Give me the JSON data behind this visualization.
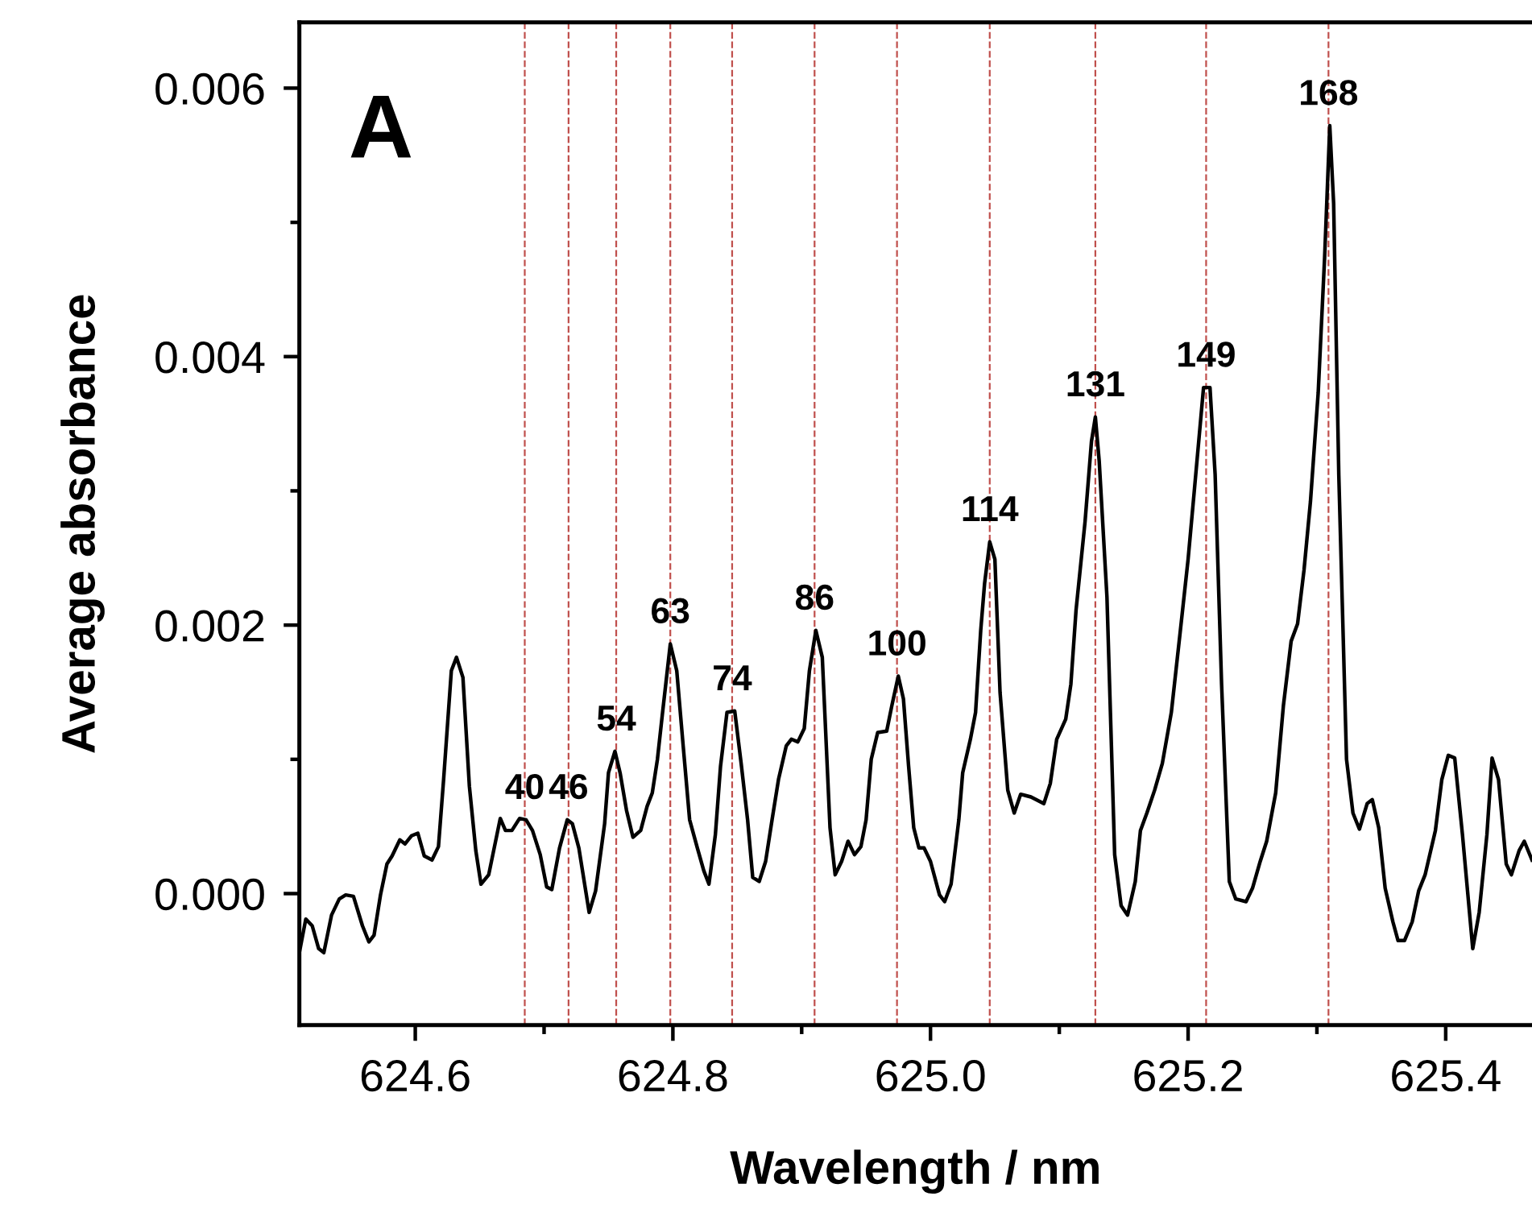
{
  "chart_data": {
    "type": "line",
    "xlabel": "Wavelength / nm",
    "ylabel": "Average absorbance",
    "xlim": [
      624.51,
      625.467
    ],
    "ylim": [
      -0.00098,
      0.00649
    ],
    "xticks": [
      624.6,
      {
        "value": 624.7,
        "label": null
      },
      624.8,
      {
        "value": 624.9,
        "label": null
      },
      {
        "value": 625.0,
        "label": "625.0"
      },
      {
        "value": 625.1,
        "label": null
      },
      625.2,
      {
        "value": 625.3,
        "label": null
      },
      625.4
    ],
    "yticks": [
      {
        "value": 0,
        "label": "0.000"
      },
      {
        "value": 0.001,
        "label": null
      },
      {
        "value": 0.002,
        "label": "0.002"
      },
      {
        "value": 0.003,
        "label": null
      },
      {
        "value": 0.004,
        "label": "0.004"
      },
      {
        "value": 0.005,
        "label": null
      },
      {
        "value": 0.006,
        "label": "0.006"
      }
    ],
    "grid": false,
    "legend": false,
    "marker": "none",
    "line_style": "solid",
    "series": [
      {
        "color": "#000000",
        "x": [
          624.51,
          624.515,
          624.52,
          624.525,
          624.529,
          624.535,
          624.541,
          624.546,
          624.552,
          624.559,
          624.564,
          624.568,
          624.573,
          624.578,
          624.582,
          624.588,
          624.592,
          624.597,
          624.602,
          624.607,
          624.613,
          624.618,
          624.622,
          624.628,
          624.632,
          624.637,
          624.642,
          624.647,
          624.651,
          624.657,
          624.666,
          624.67,
          624.675,
          624.681,
          624.686,
          624.691,
          624.697,
          624.702,
          624.706,
          624.712,
          624.718,
          624.722,
          624.727,
          624.735,
          624.74,
          624.747,
          624.75,
          624.755,
          624.759,
          624.764,
          624.769,
          624.775,
          624.78,
          624.784,
          624.788,
          624.792,
          624.798,
          624.803,
          624.808,
          624.813,
          624.819,
          624.824,
          624.828,
          624.833,
          624.837,
          624.842,
          624.848,
          624.853,
          624.858,
          624.862,
          624.867,
          624.872,
          624.877,
          624.882,
          624.888,
          624.892,
          624.897,
          624.902,
          624.906,
          624.911,
          624.916,
          624.922,
          624.926,
          624.931,
          624.936,
          624.941,
          624.946,
          624.95,
          624.954,
          624.959,
          624.966,
          624.97,
          624.975,
          624.979,
          624.983,
          624.987,
          624.991,
          624.995,
          625.0,
          625.007,
          625.011,
          625.016,
          625.022,
          625.025,
          625.031,
          625.035,
          625.039,
          625.042,
          625.046,
          625.05,
          625.054,
          625.06,
          625.065,
          625.07,
          625.078,
          625.088,
          625.093,
          625.098,
          625.105,
          625.109,
          625.113,
          625.12,
          625.125,
          625.128,
          625.131,
          625.137,
          625.143,
          625.148,
          625.153,
          625.159,
          625.163,
          625.168,
          625.174,
          625.18,
          625.187,
          625.194,
          625.2,
          625.205,
          625.212,
          625.217,
          625.221,
          625.226,
          625.232,
          625.237,
          625.245,
          625.25,
          625.256,
          625.261,
          625.268,
          625.274,
          625.28,
          625.285,
          625.29,
          625.295,
          625.301,
          625.306,
          625.31,
          625.313,
          625.317,
          625.323,
          625.328,
          625.333,
          625.339,
          625.343,
          625.348,
          625.353,
          625.359,
          625.363,
          625.368,
          625.374,
          625.379,
          625.384,
          625.392,
          625.397,
          625.402,
          625.407,
          625.413,
          625.421,
          625.426,
          625.432,
          625.436,
          625.441,
          625.447,
          625.451,
          625.457,
          625.461,
          625.467
        ],
        "values": [
          -0.00044,
          -0.00019,
          -0.00024,
          -0.00041,
          -0.00044,
          -0.00016,
          -4e-05,
          -1e-05,
          -2e-05,
          -0.00024,
          -0.00036,
          -0.00031,
          -1e-05,
          0.00022,
          0.00028,
          0.0004,
          0.00037,
          0.00043,
          0.00045,
          0.00028,
          0.00025,
          0.00035,
          0.00085,
          0.00166,
          0.00176,
          0.00161,
          0.0008,
          0.00032,
          7e-05,
          0.00014,
          0.00056,
          0.00047,
          0.00047,
          0.00056,
          0.00055,
          0.00047,
          0.00029,
          5e-05,
          3e-05,
          0.00034,
          0.00055,
          0.00052,
          0.00034,
          -0.00014,
          2e-05,
          0.00052,
          0.0009,
          0.00106,
          0.0009,
          0.00062,
          0.00042,
          0.00047,
          0.00065,
          0.00075,
          0.001,
          0.00135,
          0.00186,
          0.00166,
          0.0011,
          0.00055,
          0.00034,
          0.00017,
          7e-05,
          0.00044,
          0.00095,
          0.00135,
          0.00136,
          0.00097,
          0.00055,
          0.00012,
          9e-05,
          0.00024,
          0.00055,
          0.00085,
          0.0011,
          0.00115,
          0.00113,
          0.00123,
          0.00166,
          0.00196,
          0.00176,
          0.00049,
          0.00014,
          0.00024,
          0.00039,
          0.00029,
          0.00035,
          0.00055,
          0.001,
          0.0012,
          0.00121,
          0.0014,
          0.00162,
          0.00145,
          0.00095,
          0.00049,
          0.00034,
          0.00034,
          0.00024,
          -1e-05,
          -6e-05,
          7e-05,
          0.00055,
          0.0009,
          0.00115,
          0.00135,
          0.00196,
          0.00231,
          0.00262,
          0.00249,
          0.0015,
          0.00077,
          0.0006,
          0.00074,
          0.00072,
          0.00067,
          0.00082,
          0.00115,
          0.0013,
          0.00156,
          0.00211,
          0.00277,
          0.00337,
          0.00355,
          0.00322,
          0.00221,
          0.00029,
          -9e-05,
          -0.00016,
          9e-05,
          0.00047,
          0.0006,
          0.00077,
          0.00097,
          0.00135,
          0.00196,
          0.00249,
          0.00302,
          0.00377,
          0.00377,
          0.00312,
          0.00156,
          9e-05,
          -4e-05,
          -6e-05,
          4e-05,
          0.00024,
          0.00039,
          0.00075,
          0.0014,
          0.00188,
          0.00201,
          0.00241,
          0.00292,
          0.00373,
          0.00474,
          0.00572,
          0.00514,
          0.00312,
          0.001,
          0.0006,
          0.00048,
          0.00067,
          0.0007,
          0.00049,
          4e-05,
          -0.00021,
          -0.00035,
          -0.00035,
          -0.00021,
          2e-05,
          0.00014,
          0.00047,
          0.00085,
          0.00103,
          0.00101,
          0.00044,
          -0.00041,
          -0.00014,
          0.00044,
          0.00101,
          0.00085,
          0.00022,
          0.00014,
          0.00032,
          0.00039,
          0.00025
        ]
      }
    ],
    "ref_lines": [
      {
        "axis": "x",
        "value": 624.685,
        "color": "#c0504d",
        "line_style": "dashed"
      },
      {
        "axis": "x",
        "value": 624.719,
        "color": "#c0504d",
        "line_style": "dashed"
      },
      {
        "axis": "x",
        "value": 624.756,
        "color": "#c0504d",
        "line_style": "dashed"
      },
      {
        "axis": "x",
        "value": 624.798,
        "color": "#c0504d",
        "line_style": "dashed"
      },
      {
        "axis": "x",
        "value": 624.846,
        "color": "#c0504d",
        "line_style": "dashed"
      },
      {
        "axis": "x",
        "value": 624.91,
        "color": "#c0504d",
        "line_style": "dashed"
      },
      {
        "axis": "x",
        "value": 624.974,
        "color": "#c0504d",
        "line_style": "dashed"
      },
      {
        "axis": "x",
        "value": 625.046,
        "color": "#c0504d",
        "line_style": "dashed"
      },
      {
        "axis": "x",
        "value": 625.128,
        "color": "#c0504d",
        "line_style": "dashed"
      },
      {
        "axis": "x",
        "value": 625.214,
        "color": "#c0504d",
        "line_style": "dashed"
      },
      {
        "axis": "x",
        "value": 625.309,
        "color": "#c0504d",
        "line_style": "dashed"
      }
    ],
    "annotations": [
      "A",
      {
        "text": "40",
        "x": 624.685,
        "y": 0.00055
      },
      {
        "text": "46",
        "x": 624.719,
        "y": 0.00055
      },
      {
        "text": "54",
        "x": 624.756,
        "y": 0.00106
      },
      {
        "text": "63",
        "x": 624.798,
        "y": 0.00186
      },
      {
        "text": "74",
        "x": 624.846,
        "y": 0.00136
      },
      {
        "text": "86",
        "x": 624.91,
        "y": 0.00196
      },
      {
        "text": "100",
        "x": 624.974,
        "y": 0.00162
      },
      {
        "text": "114",
        "x": 625.046,
        "y": 0.00262
      },
      {
        "text": "131",
        "x": 625.128,
        "y": 0.00355
      },
      {
        "text": "149",
        "x": 625.214,
        "y": 0.00377
      },
      {
        "text": "168",
        "x": 625.309,
        "y": 0.00572
      }
    ]
  }
}
